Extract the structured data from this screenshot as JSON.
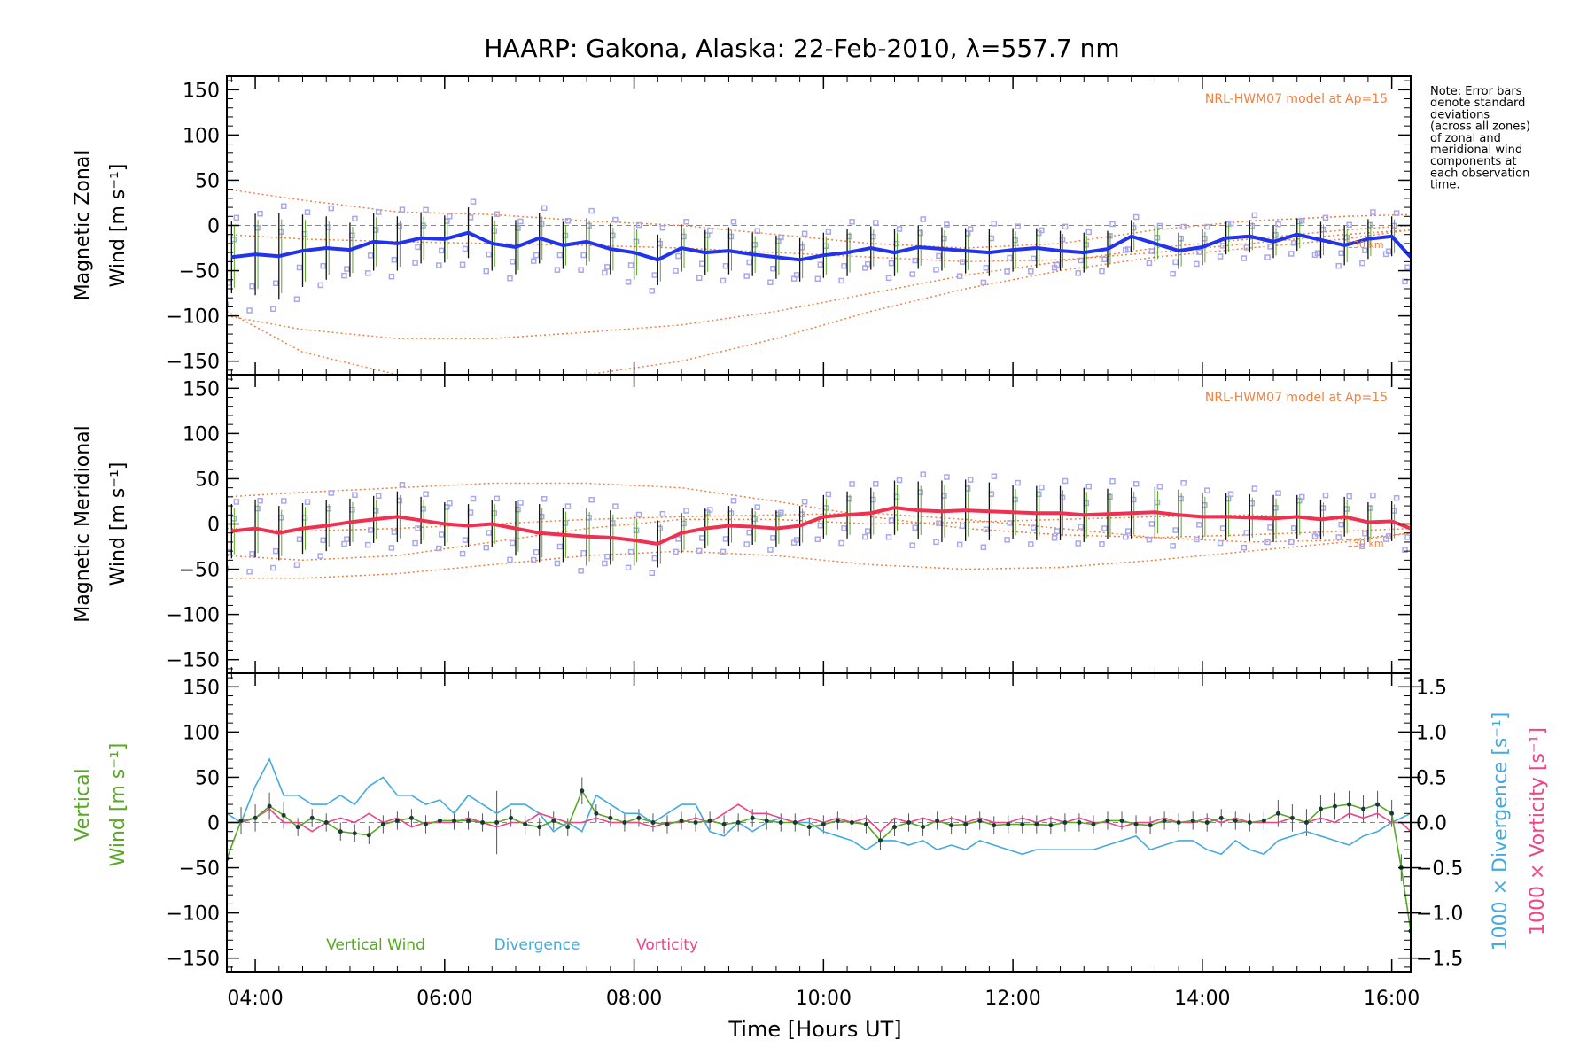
{
  "title": "HAARP: Gakona,  Alaska: 22-Feb-2010, λ=557.7 nm",
  "note": [
    "Note: Error bars",
    "denote standard",
    "deviations",
    "(across all zones)",
    "of zonal and",
    "meridional wind",
    "components at",
    "each observation",
    "time."
  ],
  "x_axis": {
    "label": "Time [Hours UT]",
    "range_hours": [
      3.7,
      16.2
    ],
    "ticks": [
      4,
      6,
      8,
      10,
      12,
      14,
      16
    ],
    "tick_labels": [
      "04:00",
      "06:00",
      "08:00",
      "10:00",
      "12:00",
      "14:00",
      "16:00"
    ]
  },
  "y_ticks": [
    150,
    100,
    50,
    0,
    -50,
    -100,
    -150
  ],
  "y_tick_labels": [
    "150",
    "100",
    "50",
    "0",
    "−50",
    "−100",
    "−150"
  ],
  "colors": {
    "zonal": "#2233ee",
    "meridional": "#f03050",
    "vertical": "#55aa22",
    "divergence": "#44aadd",
    "vorticity": "#ee4488",
    "model": "#f08040",
    "scatter": "#a8a8ee",
    "errorbar": "#111111"
  },
  "chart_data": [
    {
      "type": "line",
      "panel": "zonal",
      "ylabel_line1": "Magnetic Zonal",
      "ylabel_line2": "Wind [m s⁻¹]",
      "ylim": [
        -165,
        165
      ],
      "model_label": "NRL-HWM07 model at Ap=15",
      "model_height_label": "130 km",
      "x": [
        3.75,
        4.0,
        4.25,
        4.5,
        4.75,
        5.0,
        5.25,
        5.5,
        5.75,
        6.0,
        6.25,
        6.5,
        6.75,
        7.0,
        7.25,
        7.5,
        7.75,
        8.0,
        8.25,
        8.5,
        8.75,
        9.0,
        9.25,
        9.5,
        9.75,
        10.0,
        10.25,
        10.5,
        10.75,
        11.0,
        11.25,
        11.5,
        11.75,
        12.0,
        12.25,
        12.5,
        12.75,
        13.0,
        13.25,
        13.5,
        13.75,
        14.0,
        14.25,
        14.5,
        14.75,
        15.0,
        15.25,
        15.5,
        15.75,
        16.0,
        16.2
      ],
      "series": [
        {
          "name": "zonal",
          "values": [
            -35,
            -32,
            -34,
            -28,
            -25,
            -27,
            -18,
            -20,
            -14,
            -15,
            -8,
            -20,
            -24,
            -14,
            -22,
            -18,
            -26,
            -30,
            -38,
            -25,
            -30,
            -28,
            -32,
            -35,
            -38,
            -33,
            -30,
            -25,
            -30,
            -24,
            -26,
            -28,
            -30,
            -27,
            -25,
            -28,
            -30,
            -26,
            -12,
            -20,
            -28,
            -24,
            -14,
            -12,
            -18,
            -10,
            -16,
            -22,
            -15,
            -12,
            -35
          ]
        }
      ],
      "error_bars": [
        40,
        45,
        48,
        40,
        35,
        30,
        32,
        30,
        28,
        26,
        28,
        30,
        30,
        28,
        26,
        26,
        28,
        30,
        28,
        26,
        25,
        26,
        24,
        24,
        24,
        25,
        26,
        24,
        26,
        24,
        24,
        25,
        26,
        24,
        22,
        22,
        22,
        20,
        18,
        20,
        20,
        20,
        18,
        18,
        18,
        18,
        20,
        22,
        22,
        22,
        25
      ],
      "model_curves_x": [
        3.7,
        4.5,
        5.5,
        6.5,
        7.5,
        8.5,
        9.5,
        10.5,
        11.5,
        12.5,
        13.5,
        14.5,
        15.5,
        16.2
      ],
      "model_curves": [
        [
          40,
          28,
          15,
          12,
          5,
          0,
          -10,
          -20,
          -25,
          -20,
          -5,
          5,
          10,
          12
        ],
        [
          -100,
          -115,
          -125,
          -125,
          -118,
          -110,
          -95,
          -75,
          -55,
          -40,
          -25,
          -15,
          -5,
          0
        ],
        [
          -95,
          -140,
          -165,
          -175,
          -165,
          -150,
          -125,
          -95,
          -70,
          -50,
          -35,
          -25,
          -15,
          -5
        ],
        [
          -10,
          -15,
          -18,
          -20,
          -22,
          -25,
          -30,
          -35,
          -40,
          -38,
          -30,
          -20,
          -10,
          -5
        ]
      ]
    },
    {
      "type": "line",
      "panel": "meridional",
      "ylabel_line1": "Magnetic Meridional",
      "ylabel_line2": "Wind [m s⁻¹]",
      "ylim": [
        -165,
        165
      ],
      "model_label": "NRL-HWM07 model at Ap=15",
      "model_height_label": "130 km",
      "x": [
        3.75,
        4.0,
        4.25,
        4.5,
        4.75,
        5.0,
        5.25,
        5.5,
        5.75,
        6.0,
        6.25,
        6.5,
        6.75,
        7.0,
        7.25,
        7.5,
        7.75,
        8.0,
        8.25,
        8.5,
        8.75,
        9.0,
        9.25,
        9.5,
        9.75,
        10.0,
        10.25,
        10.5,
        10.75,
        11.0,
        11.25,
        11.5,
        11.75,
        12.0,
        12.25,
        12.5,
        12.75,
        13.0,
        13.25,
        13.5,
        13.75,
        14.0,
        14.25,
        14.5,
        14.75,
        15.0,
        15.25,
        15.5,
        15.75,
        16.0,
        16.2
      ],
      "series": [
        {
          "name": "meridional",
          "values": [
            -8,
            -5,
            -10,
            -5,
            -2,
            2,
            5,
            8,
            4,
            0,
            -2,
            0,
            -5,
            -10,
            -12,
            -14,
            -15,
            -18,
            -22,
            -10,
            -5,
            -2,
            -3,
            -5,
            -2,
            8,
            10,
            12,
            18,
            15,
            14,
            15,
            14,
            13,
            12,
            12,
            10,
            11,
            12,
            13,
            10,
            8,
            8,
            7,
            6,
            8,
            5,
            8,
            2,
            3,
            -5
          ]
        }
      ],
      "error_bars": [
        30,
        32,
        30,
        28,
        28,
        26,
        26,
        28,
        26,
        24,
        24,
        26,
        30,
        32,
        30,
        32,
        30,
        28,
        26,
        22,
        22,
        22,
        20,
        20,
        22,
        24,
        26,
        28,
        30,
        32,
        34,
        34,
        32,
        30,
        30,
        30,
        30,
        28,
        28,
        28,
        28,
        26,
        26,
        26,
        26,
        24,
        22,
        22,
        22,
        22,
        22
      ],
      "model_curves_x": [
        3.7,
        4.5,
        5.5,
        6.5,
        7.5,
        8.5,
        9.5,
        10.5,
        11.5,
        12.5,
        13.5,
        14.5,
        15.5,
        16.2
      ],
      "model_curves": [
        [
          30,
          35,
          40,
          45,
          45,
          40,
          25,
          8,
          -5,
          -12,
          -15,
          -12,
          -8,
          -5
        ],
        [
          -35,
          -40,
          -35,
          -20,
          -5,
          5,
          5,
          0,
          2,
          5,
          8,
          10,
          5,
          0
        ],
        [
          -60,
          -60,
          -55,
          -45,
          -35,
          -30,
          -35,
          -45,
          -50,
          -48,
          -40,
          -30,
          -20,
          -10
        ],
        [
          -5,
          -8,
          -5,
          0,
          5,
          8,
          10,
          12,
          5,
          -5,
          -15,
          -20,
          -18,
          -10
        ]
      ]
    },
    {
      "type": "line",
      "panel": "vertical",
      "ylabel_line1": "Vertical",
      "ylabel_line2": "Wind [m s⁻¹]",
      "ylim": [
        -165,
        165
      ],
      "y2_label_divergence": "1000 × Divergence [s⁻¹]",
      "y2_label_vorticity": "1000 × Vorticity [s⁻¹]",
      "y2_lim": [
        -1.65,
        1.65
      ],
      "y2_ticks": [
        1.5,
        1.0,
        0.5,
        0.0,
        -0.5,
        -1.0,
        -1.5
      ],
      "y2_tick_labels": [
        "1.5",
        "1.0",
        "0.5",
        "0.0",
        "−0.5",
        "−1.0",
        "−1.5"
      ],
      "x": [
        3.7,
        3.85,
        4.0,
        4.15,
        4.3,
        4.45,
        4.6,
        4.75,
        4.9,
        5.05,
        5.2,
        5.35,
        5.5,
        5.65,
        5.8,
        5.95,
        6.1,
        6.25,
        6.4,
        6.55,
        6.7,
        6.85,
        7.0,
        7.15,
        7.3,
        7.45,
        7.6,
        7.75,
        7.9,
        8.05,
        8.2,
        8.35,
        8.5,
        8.65,
        8.8,
        8.95,
        9.1,
        9.25,
        9.4,
        9.55,
        9.7,
        9.85,
        10.0,
        10.15,
        10.3,
        10.45,
        10.6,
        10.75,
        10.9,
        11.05,
        11.2,
        11.35,
        11.5,
        11.65,
        11.8,
        11.95,
        12.1,
        12.25,
        12.4,
        12.55,
        12.7,
        12.85,
        13.0,
        13.15,
        13.3,
        13.45,
        13.6,
        13.75,
        13.9,
        14.05,
        14.2,
        14.35,
        14.5,
        14.65,
        14.8,
        14.95,
        15.1,
        15.25,
        15.4,
        15.55,
        15.7,
        15.85,
        16.0,
        16.1,
        16.2
      ],
      "series": [
        {
          "name": "Vertical Wind",
          "values": [
            -40,
            2,
            5,
            18,
            8,
            -5,
            5,
            0,
            -10,
            -12,
            -14,
            -2,
            2,
            5,
            -2,
            2,
            2,
            2,
            0,
            0,
            5,
            -2,
            -5,
            2,
            -5,
            35,
            10,
            5,
            0,
            5,
            0,
            -2,
            2,
            0,
            2,
            -2,
            0,
            5,
            2,
            0,
            0,
            -5,
            -2,
            2,
            0,
            -2,
            -20,
            -5,
            0,
            -5,
            2,
            -3,
            -2,
            2,
            -3,
            -2,
            -2,
            -2,
            -3,
            0,
            0,
            -2,
            2,
            2,
            -2,
            -3,
            2,
            0,
            2,
            0,
            5,
            2,
            0,
            2,
            10,
            5,
            0,
            15,
            18,
            20,
            15,
            20,
            10,
            -50,
            -120
          ]
        },
        {
          "name": "Divergence",
          "values": [
            0.1,
            0.0,
            0.4,
            0.7,
            0.3,
            0.3,
            0.2,
            0.2,
            0.3,
            0.2,
            0.4,
            0.5,
            0.3,
            0.3,
            0.2,
            0.25,
            0.1,
            0.3,
            0.2,
            0.1,
            0.2,
            0.2,
            0.1,
            -0.1,
            0.0,
            -0.1,
            0.3,
            0.2,
            0.1,
            0.1,
            0.0,
            0.1,
            0.2,
            0.2,
            -0.1,
            -0.15,
            0.0,
            -0.1,
            0.0,
            0.05,
            0.0,
            0.0,
            -0.1,
            -0.15,
            -0.2,
            -0.3,
            -0.2,
            -0.2,
            -0.25,
            -0.2,
            -0.3,
            -0.25,
            -0.3,
            -0.2,
            -0.25,
            -0.3,
            -0.35,
            -0.3,
            -0.3,
            -0.3,
            -0.3,
            -0.3,
            -0.25,
            -0.2,
            -0.15,
            -0.3,
            -0.25,
            -0.2,
            -0.2,
            -0.3,
            -0.35,
            -0.2,
            -0.3,
            -0.35,
            -0.2,
            -0.15,
            -0.1,
            -0.15,
            -0.2,
            -0.25,
            -0.15,
            -0.1,
            0.0,
            0.05,
            0.1
          ]
        },
        {
          "name": "Vorticity",
          "values": [
            0.0,
            0.0,
            0.05,
            0.15,
            0.0,
            0.0,
            -0.1,
            0.0,
            0.05,
            0.0,
            0.1,
            0.0,
            0.05,
            -0.05,
            0.0,
            0.0,
            0.0,
            0.05,
            0.0,
            -0.05,
            0.0,
            0.0,
            0.1,
            0.05,
            0.0,
            0.0,
            0.05,
            0.0,
            0.0,
            0.0,
            -0.05,
            0.0,
            0.0,
            0.05,
            0.0,
            0.1,
            0.2,
            0.1,
            0.1,
            0.05,
            0.0,
            0.05,
            0.0,
            0.05,
            0.0,
            0.05,
            -0.1,
            0.05,
            0.0,
            0.05,
            0.0,
            0.05,
            0.0,
            0.05,
            0.0,
            0.0,
            0.05,
            0.0,
            0.05,
            0.0,
            0.05,
            0.0,
            0.0,
            -0.05,
            0.0,
            0.0,
            0.05,
            0.0,
            0.0,
            0.05,
            0.0,
            0.05,
            0.0,
            0.0,
            0.0,
            0.05,
            0.0,
            0.05,
            0.0,
            0.1,
            0.05,
            0.1,
            0.0,
            0.0,
            -0.1
          ]
        }
      ],
      "vertical_error_bars": [
        15,
        15,
        15,
        15,
        15,
        10,
        10,
        10,
        10,
        10,
        10,
        10,
        10,
        10,
        10,
        10,
        10,
        10,
        10,
        35,
        10,
        10,
        10,
        10,
        10,
        15,
        10,
        10,
        10,
        10,
        10,
        10,
        10,
        10,
        10,
        10,
        10,
        10,
        10,
        10,
        10,
        10,
        10,
        10,
        10,
        10,
        10,
        10,
        10,
        10,
        10,
        10,
        10,
        10,
        10,
        10,
        10,
        10,
        10,
        10,
        10,
        10,
        10,
        10,
        10,
        10,
        10,
        10,
        10,
        10,
        10,
        10,
        10,
        10,
        15,
        15,
        15,
        15,
        15,
        15,
        15,
        15,
        15,
        15,
        15
      ],
      "legend": [
        "Vertical Wind",
        "Divergence",
        "Vorticity"
      ]
    }
  ]
}
